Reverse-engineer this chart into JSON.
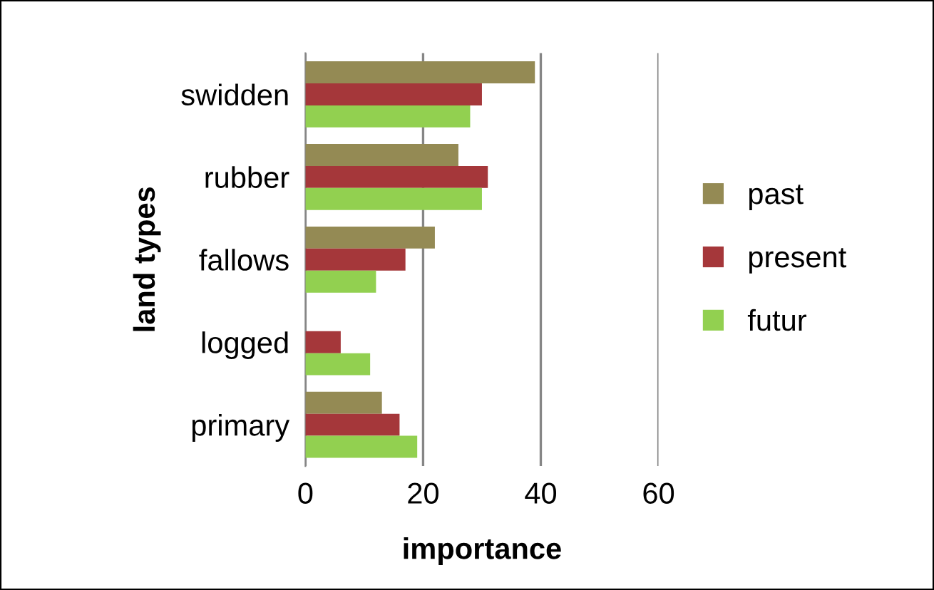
{
  "chart_data": {
    "type": "bar",
    "orientation": "horizontal",
    "xlabel": "importance",
    "ylabel": "land types",
    "categories": [
      "swidden",
      "rubber",
      "fallows",
      "logged",
      "primary"
    ],
    "series": [
      {
        "name": "past",
        "color": "#948a54",
        "values": [
          39,
          26,
          22,
          0,
          13
        ]
      },
      {
        "name": "present",
        "color": "#a5373a",
        "values": [
          30,
          31,
          17,
          6,
          16
        ]
      },
      {
        "name": "futur",
        "color": "#92d050",
        "values": [
          28,
          30,
          12,
          11,
          19
        ]
      }
    ],
    "xlim": [
      0,
      60
    ],
    "xticks": [
      0,
      20,
      40,
      60
    ],
    "grid": "x",
    "legend": "right"
  }
}
